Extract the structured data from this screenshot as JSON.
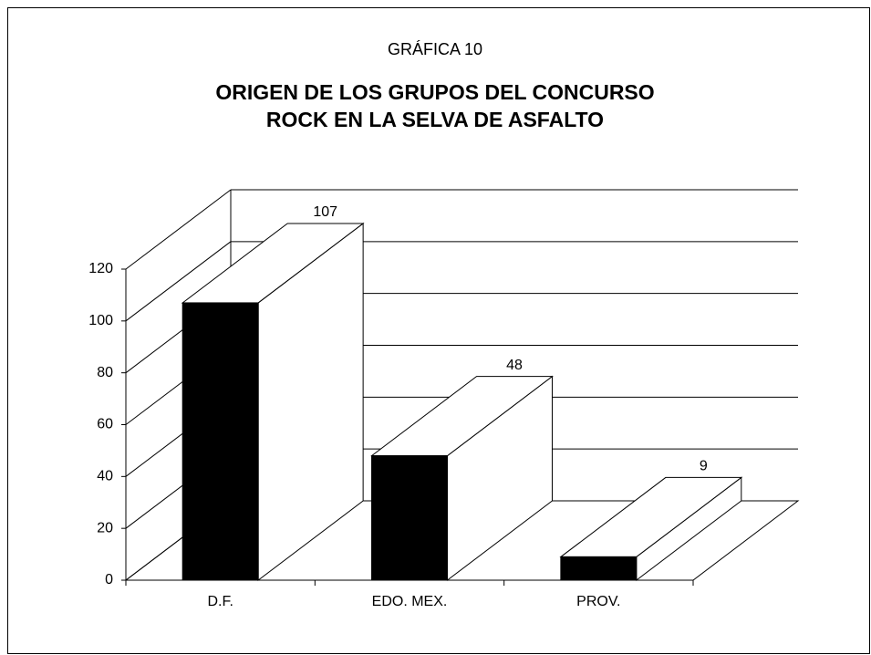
{
  "chart_data": {
    "type": "bar3d",
    "title": "GRÁFICA 10",
    "subtitle": [
      "ORIGEN DE LOS GRUPOS DEL CONCURSO",
      "ROCK EN LA SELVA DE ASFALTO"
    ],
    "categories": [
      "D.F.",
      "EDO. MEX.",
      "PROV."
    ],
    "values": [
      107,
      48,
      9
    ],
    "color": "#000000",
    "ylim": [
      0,
      120
    ],
    "yticks": [
      0,
      20,
      40,
      60,
      80,
      100,
      120
    ],
    "grid": true
  }
}
